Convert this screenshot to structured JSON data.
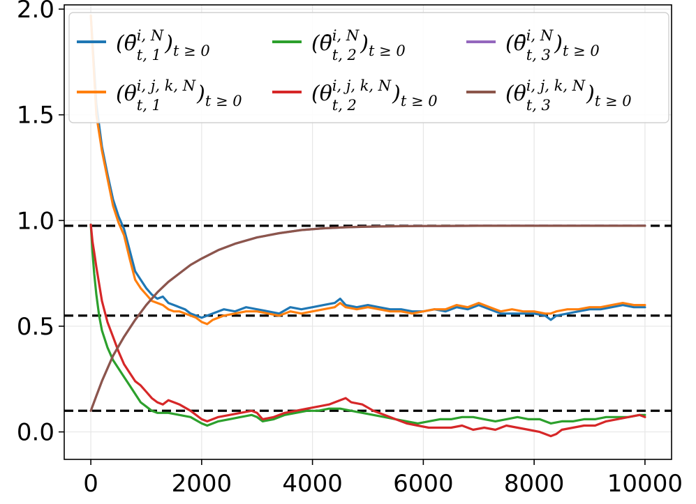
{
  "chart_data": {
    "type": "line",
    "xlim": [
      -480,
      10480
    ],
    "ylim": [
      -0.13,
      2.02
    ],
    "grid": true,
    "legend_position": "top",
    "x_ticks": [
      {
        "value": 0,
        "label": "0"
      },
      {
        "value": 2000,
        "label": "2000"
      },
      {
        "value": 4000,
        "label": "4000"
      },
      {
        "value": 6000,
        "label": "6000"
      },
      {
        "value": 8000,
        "label": "8000"
      },
      {
        "value": 10000,
        "label": "10000"
      }
    ],
    "y_ticks": [
      {
        "value": 0.0,
        "label": "0.0"
      },
      {
        "value": 0.5,
        "label": "0.5"
      },
      {
        "value": 1.0,
        "label": "1.0"
      },
      {
        "value": 1.5,
        "label": "1.5"
      },
      {
        "value": 2.0,
        "label": "2.0"
      }
    ],
    "reference_lines": [
      0.975,
      0.55,
      0.1
    ],
    "series": [
      {
        "id": "s1",
        "legend_base": "(θ̄",
        "legend_sup": "i, N",
        "legend_sub": "t, 1",
        "legend_tail": ")",
        "legend_tail_sub": "t ≥ 0",
        "color": "#1f77b4",
        "x": [
          0,
          100,
          200,
          300,
          400,
          500,
          600,
          700,
          800,
          900,
          1000,
          1100,
          1200,
          1300,
          1400,
          1500,
          1600,
          1700,
          1800,
          1900,
          2000,
          2200,
          2400,
          2600,
          2800,
          3000,
          3200,
          3400,
          3600,
          3800,
          4000,
          4200,
          4400,
          4500,
          4600,
          4800,
          5000,
          5200,
          5400,
          5600,
          5800,
          6000,
          6200,
          6400,
          6600,
          6800,
          7000,
          7200,
          7400,
          7600,
          7800,
          8000,
          8200,
          8300,
          8400,
          8600,
          8800,
          9000,
          9200,
          9400,
          9600,
          9800,
          10000
        ],
        "y": [
          1.97,
          1.55,
          1.35,
          1.22,
          1.1,
          1.02,
          0.96,
          0.86,
          0.76,
          0.72,
          0.68,
          0.65,
          0.63,
          0.64,
          0.61,
          0.6,
          0.59,
          0.58,
          0.56,
          0.55,
          0.54,
          0.56,
          0.58,
          0.57,
          0.59,
          0.58,
          0.57,
          0.56,
          0.59,
          0.58,
          0.59,
          0.6,
          0.61,
          0.63,
          0.6,
          0.59,
          0.6,
          0.59,
          0.58,
          0.58,
          0.57,
          0.57,
          0.58,
          0.57,
          0.59,
          0.58,
          0.6,
          0.58,
          0.56,
          0.56,
          0.56,
          0.56,
          0.55,
          0.53,
          0.55,
          0.56,
          0.57,
          0.58,
          0.58,
          0.59,
          0.6,
          0.59,
          0.59
        ]
      },
      {
        "id": "s2",
        "legend_base": "(θ̄",
        "legend_sup": "i, N",
        "legend_sub": "t, 2",
        "legend_tail": ")",
        "legend_tail_sub": "t ≥ 0",
        "color": "#2ca02c",
        "x": [
          0,
          30,
          60,
          100,
          150,
          200,
          300,
          400,
          500,
          600,
          700,
          800,
          900,
          1000,
          1100,
          1200,
          1300,
          1400,
          1600,
          1800,
          2000,
          2100,
          2300,
          2500,
          2700,
          2900,
          3000,
          3100,
          3300,
          3500,
          3700,
          3900,
          4100,
          4300,
          4500,
          4700,
          4900,
          5100,
          5300,
          5500,
          5700,
          5900,
          6100,
          6300,
          6500,
          6700,
          6900,
          7100,
          7300,
          7500,
          7700,
          7900,
          8100,
          8300,
          8500,
          8700,
          8900,
          9100,
          9300,
          9500,
          9700,
          9900,
          10000
        ],
        "y": [
          0.98,
          0.85,
          0.75,
          0.65,
          0.55,
          0.48,
          0.4,
          0.34,
          0.3,
          0.26,
          0.22,
          0.18,
          0.14,
          0.12,
          0.1,
          0.09,
          0.09,
          0.09,
          0.08,
          0.07,
          0.04,
          0.03,
          0.05,
          0.06,
          0.07,
          0.08,
          0.07,
          0.05,
          0.06,
          0.08,
          0.09,
          0.1,
          0.1,
          0.11,
          0.11,
          0.1,
          0.09,
          0.08,
          0.07,
          0.06,
          0.05,
          0.04,
          0.05,
          0.06,
          0.06,
          0.07,
          0.07,
          0.06,
          0.05,
          0.06,
          0.07,
          0.06,
          0.06,
          0.04,
          0.05,
          0.05,
          0.06,
          0.06,
          0.07,
          0.07,
          0.07,
          0.08,
          0.08
        ]
      },
      {
        "id": "s3",
        "legend_base": "(θ̄",
        "legend_sup": "i, N",
        "legend_sub": "t, 3",
        "legend_tail": ")",
        "legend_tail_sub": "t ≥ 0",
        "color": "#9467bd",
        "x": [
          0,
          100,
          200,
          300,
          400,
          600,
          800,
          1000,
          1200,
          1400,
          1600,
          1800,
          2000,
          2300,
          2600,
          3000,
          3400,
          3800,
          4200,
          4600,
          5000,
          5500,
          6000,
          7000,
          8000,
          9000,
          10000
        ],
        "y": [
          0.1,
          0.17,
          0.24,
          0.3,
          0.36,
          0.45,
          0.53,
          0.6,
          0.66,
          0.71,
          0.75,
          0.79,
          0.82,
          0.86,
          0.89,
          0.92,
          0.94,
          0.955,
          0.963,
          0.968,
          0.971,
          0.973,
          0.974,
          0.975,
          0.975,
          0.975,
          0.975
        ]
      },
      {
        "id": "s4",
        "legend_base": "(θ",
        "legend_sup": "i, j, k, N",
        "legend_sub": "t, 1",
        "legend_tail": ")",
        "legend_tail_sub": "t ≥ 0",
        "color": "#ff7f0e",
        "x": [
          0,
          100,
          200,
          300,
          400,
          500,
          600,
          700,
          800,
          900,
          1000,
          1100,
          1200,
          1300,
          1400,
          1500,
          1600,
          1700,
          1800,
          1900,
          2000,
          2100,
          2200,
          2400,
          2600,
          2800,
          3000,
          3200,
          3400,
          3600,
          3800,
          4000,
          4200,
          4400,
          4500,
          4600,
          4800,
          5000,
          5200,
          5400,
          5600,
          5800,
          6000,
          6200,
          6400,
          6600,
          6800,
          7000,
          7200,
          7400,
          7600,
          7800,
          8000,
          8200,
          8300,
          8400,
          8600,
          8800,
          9000,
          9200,
          9400,
          9600,
          9800,
          10000
        ],
        "y": [
          1.97,
          1.5,
          1.33,
          1.2,
          1.07,
          0.99,
          0.93,
          0.82,
          0.72,
          0.68,
          0.65,
          0.62,
          0.61,
          0.6,
          0.58,
          0.57,
          0.57,
          0.56,
          0.55,
          0.54,
          0.52,
          0.51,
          0.53,
          0.55,
          0.56,
          0.57,
          0.57,
          0.56,
          0.55,
          0.57,
          0.56,
          0.57,
          0.58,
          0.59,
          0.61,
          0.59,
          0.58,
          0.59,
          0.58,
          0.57,
          0.57,
          0.56,
          0.57,
          0.58,
          0.58,
          0.6,
          0.59,
          0.61,
          0.59,
          0.57,
          0.58,
          0.57,
          0.57,
          0.56,
          0.56,
          0.57,
          0.58,
          0.58,
          0.59,
          0.59,
          0.6,
          0.61,
          0.6,
          0.6
        ]
      },
      {
        "id": "s5",
        "legend_base": "(θ",
        "legend_sup": "i, j, k, N",
        "legend_sub": "t, 2",
        "legend_tail": ")",
        "legend_tail_sub": "t ≥ 0",
        "color": "#d62728",
        "x": [
          0,
          30,
          60,
          100,
          150,
          200,
          300,
          400,
          500,
          600,
          700,
          800,
          900,
          1000,
          1100,
          1200,
          1300,
          1400,
          1600,
          1800,
          2000,
          2100,
          2300,
          2500,
          2700,
          2900,
          3000,
          3100,
          3300,
          3500,
          3700,
          3900,
          4100,
          4300,
          4500,
          4600,
          4700,
          4900,
          5100,
          5300,
          5500,
          5700,
          5900,
          6100,
          6300,
          6500,
          6700,
          6900,
          7100,
          7300,
          7500,
          7700,
          7900,
          8100,
          8300,
          8400,
          8500,
          8700,
          8900,
          9100,
          9300,
          9500,
          9700,
          9900,
          10000
        ],
        "y": [
          0.98,
          0.9,
          0.85,
          0.78,
          0.7,
          0.62,
          0.52,
          0.45,
          0.38,
          0.32,
          0.28,
          0.24,
          0.22,
          0.19,
          0.16,
          0.14,
          0.13,
          0.15,
          0.13,
          0.1,
          0.06,
          0.05,
          0.07,
          0.08,
          0.09,
          0.1,
          0.09,
          0.06,
          0.07,
          0.09,
          0.1,
          0.11,
          0.12,
          0.13,
          0.15,
          0.16,
          0.14,
          0.13,
          0.1,
          0.08,
          0.06,
          0.04,
          0.03,
          0.02,
          0.02,
          0.02,
          0.03,
          0.01,
          0.02,
          0.01,
          0.03,
          0.02,
          0.01,
          0.0,
          -0.02,
          -0.01,
          0.01,
          0.02,
          0.03,
          0.03,
          0.05,
          0.06,
          0.07,
          0.08,
          0.07
        ]
      },
      {
        "id": "s6",
        "legend_base": "(θ",
        "legend_sup": "i, j, k, N",
        "legend_sub": "t, 3",
        "legend_tail": ")",
        "legend_tail_sub": "t ≥ 0",
        "color": "#8c564b",
        "x": [
          0,
          100,
          200,
          300,
          400,
          600,
          800,
          1000,
          1200,
          1400,
          1600,
          1800,
          2000,
          2300,
          2600,
          3000,
          3400,
          3800,
          4200,
          4600,
          5000,
          5500,
          6000,
          7000,
          8000,
          9000,
          10000
        ],
        "y": [
          0.1,
          0.17,
          0.24,
          0.3,
          0.36,
          0.45,
          0.53,
          0.6,
          0.66,
          0.71,
          0.75,
          0.79,
          0.82,
          0.86,
          0.89,
          0.92,
          0.94,
          0.955,
          0.963,
          0.968,
          0.971,
          0.973,
          0.974,
          0.975,
          0.975,
          0.975,
          0.975
        ]
      }
    ]
  }
}
